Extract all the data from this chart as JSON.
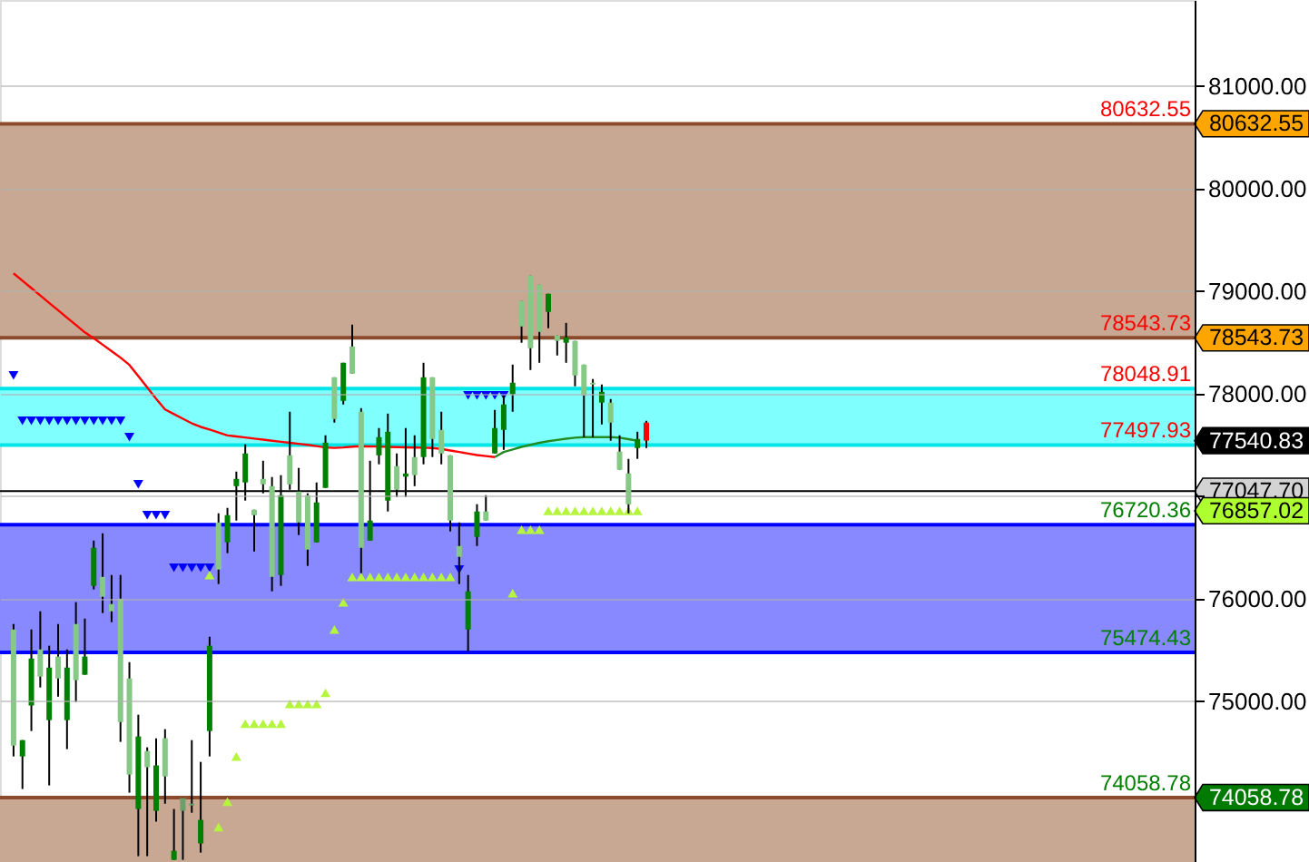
{
  "chart_data": {
    "type": "candlestick",
    "categories": [
      null,
      null,
      null,
      null,
      null,
      null,
      null,
      null,
      null,
      null,
      null,
      null,
      null,
      null,
      null,
      null,
      null,
      null,
      null,
      null,
      null,
      null,
      null,
      null,
      null,
      null,
      null,
      null,
      null,
      null,
      null,
      null,
      null,
      null,
      null,
      null,
      null,
      null,
      null,
      null,
      null,
      null,
      null,
      null,
      null,
      null,
      null,
      null,
      null,
      null,
      null,
      null,
      null,
      null,
      null,
      null,
      null,
      null,
      null,
      null,
      null,
      null,
      null,
      null,
      null,
      null,
      null,
      null,
      null,
      null,
      null,
      null,
      null,
      null,
      null,
      null,
      null,
      null,
      null,
      null,
      null,
      null,
      null,
      null,
      null,
      null,
      null,
      null,
      null,
      null,
      null,
      null,
      null,
      null,
      null,
      null,
      null,
      null,
      null,
      null,
      null,
      null,
      null,
      null,
      null,
      null,
      null,
      null,
      null,
      null,
      null,
      null,
      null,
      null,
      null,
      null,
      null,
      null,
      null,
      null,
      null,
      null,
      null,
      null,
      null,
      null,
      null,
      null,
      null,
      null,
      null,
      null
    ],
    "ohlc": [
      [
        75699,
        75752,
        74460,
        74566
      ],
      [
        74460,
        74619,
        74142,
        74619
      ],
      [
        74956,
        75699,
        74708,
        75416
      ],
      [
        75504,
        75876,
        75133,
        75239
      ],
      [
        74814,
        75540,
        74177,
        75327
      ],
      [
        75434,
        75752,
        75044,
        75221
      ],
      [
        74814,
        75504,
        74531,
        75327
      ],
      [
        75752,
        75965,
        74991,
        75204
      ],
      [
        75257,
        75805,
        75257,
        75434
      ],
      [
        76124,
        76566,
        76089,
        76496
      ],
      [
        76212,
        76637,
        75859,
        76018
      ],
      [
        75947,
        76230,
        75770,
        75876
      ],
      [
        76000,
        76230,
        74602,
        74796
      ],
      [
        75221,
        75380,
        74106,
        74283
      ],
      [
        73947,
        74867,
        73487,
        74655
      ],
      [
        74513,
        74549,
        73487,
        74354
      ],
      [
        73929,
        74637,
        73823,
        74372
      ],
      [
        74637,
        74726,
        73999,
        74265
      ],
      [
        73451,
        73947,
        73451,
        73540
      ],
      [
        74053,
        74053,
        73451,
        73929
      ],
      [
        73999,
        74619,
        73911,
        73982
      ],
      [
        73611,
        74407,
        73522,
        73841
      ],
      [
        74708,
        75628,
        74460,
        75540
      ],
      [
        76743,
        76832,
        76142,
        76283
      ],
      [
        76549,
        76885,
        76443,
        76814
      ],
      [
        77097,
        77239,
        76761,
        77168
      ],
      [
        77133,
        77505,
        76956,
        77416
      ],
      [
        76867,
        76867,
        76460,
        76814
      ],
      [
        77168,
        77345,
        77027,
        77115
      ],
      [
        77097,
        77186,
        76071,
        76212
      ],
      [
        76230,
        77204,
        76124,
        77009
      ],
      [
        77398,
        77823,
        77062,
        77115
      ],
      [
        77044,
        77275,
        76620,
        76743
      ],
      [
        77009,
        77027,
        76319,
        76478
      ],
      [
        76549,
        77133,
        76549,
        76938
      ],
      [
        77080,
        77593,
        77080,
        77522
      ],
      [
        78159,
        78159,
        77717,
        77752
      ],
      [
        77929,
        78301,
        77894,
        78301
      ],
      [
        78460,
        78673,
        78195,
        78195
      ],
      [
        77823,
        77858,
        76248,
        76496
      ],
      [
        76566,
        77345,
        76566,
        76761
      ],
      [
        77398,
        77664,
        77310,
        77575
      ],
      [
        76956,
        77805,
        76850,
        77628
      ],
      [
        77292,
        77416,
        76991,
        77062
      ],
      [
        77220,
        77664,
        76991,
        77190
      ],
      [
        77381,
        77593,
        77097,
        77204
      ],
      [
        77381,
        78301,
        77310,
        78159
      ],
      [
        78159,
        78159,
        77381,
        77557
      ],
      [
        77646,
        77823,
        77310,
        77416
      ],
      [
        77398,
        77398,
        76655,
        76761
      ],
      [
        76513,
        76743,
        76142,
        76407
      ],
      [
        75699,
        76230,
        75487,
        76071
      ],
      [
        76602,
        76921,
        76513,
        76850
      ],
      [
        76850,
        77009,
        76761,
        76761
      ],
      [
        77416,
        77841,
        77416,
        77664
      ],
      [
        77646,
        77982,
        77451,
        77894
      ],
      [
        77994,
        78283,
        77823,
        78106
      ],
      [
        78903,
        78903,
        78496,
        78655
      ],
      [
        79151,
        79151,
        78230,
        78443
      ],
      [
        79062,
        79062,
        78301,
        78602
      ],
      [
        78797,
        78974,
        78637,
        78974
      ],
      [
        78567,
        78567,
        78372,
        78514
      ],
      [
        78496,
        78690,
        78301,
        78549
      ],
      [
        78514,
        78514,
        78071,
        78177
      ],
      [
        78283,
        78283,
        77575,
        77982
      ],
      [
        78106,
        78142,
        77575,
        78089
      ],
      [
        77912,
        78089,
        77699,
        78018
      ],
      [
        77912,
        77947,
        77540,
        77717
      ],
      [
        77434,
        77593,
        77257,
        77257
      ],
      [
        77221,
        77363,
        76832,
        76920
      ],
      [
        77469,
        77628,
        77363,
        77557
      ],
      [
        77717,
        77735,
        77469,
        77540.83
      ],
      null,
      null,
      null,
      null,
      null,
      null,
      null,
      null,
      null,
      null,
      null,
      null,
      null,
      null,
      null,
      null,
      null,
      null,
      null,
      null,
      null,
      null,
      null,
      null,
      null,
      null,
      null,
      null,
      null,
      null,
      null,
      null,
      null,
      null,
      null,
      null,
      null,
      null,
      null,
      null,
      null,
      null,
      null,
      null,
      null,
      null,
      null,
      null,
      null,
      null,
      null,
      null,
      null,
      null,
      null,
      null,
      null,
      null,
      null,
      null
    ],
    "colors": [
      "#86c986",
      "#008000",
      "#008000",
      "#86c986",
      "#008000",
      "#86c986",
      "#008000",
      "#86c986",
      "#008000",
      "#008000",
      "#86c986",
      "#86c986",
      "#86c986",
      "#86c986",
      "#008000",
      "#86c986",
      "#008000",
      "#86c986",
      "#008000",
      "#6b9f6b",
      "#6b9f6b",
      "#008000",
      "#008000",
      "#86c986",
      "#008000",
      "#008000",
      "#008000",
      "#86c986",
      "#86c986",
      "#86c986",
      "#008000",
      "#86c986",
      "#86c986",
      "#86c986",
      "#008000",
      "#008000",
      "#86c986",
      "#008000",
      "#86c986",
      "#86c986",
      "#008000",
      "#008000",
      "#008000",
      "#86c986",
      "#008000",
      "#86c986",
      "#008000",
      "#86c986",
      "#86c986",
      "#86c986",
      "#86c986",
      "#008000",
      "#008000",
      "#86c986",
      "#008000",
      "#008000",
      "#008000",
      "#86c986",
      "#86c986",
      "#86c986",
      "#008000",
      "#86c986",
      "#008000",
      "#86c986",
      "#86c986",
      "#86c986",
      "#008000",
      "#86c986",
      "#86c986",
      "#86c986",
      "#008000",
      "#ff0000",
      null,
      null,
      null,
      null,
      null,
      null,
      null,
      null,
      null,
      null,
      null,
      null,
      null,
      null,
      null,
      null,
      null,
      null,
      null,
      null,
      null,
      null,
      null,
      null,
      null,
      null,
      null,
      null,
      null,
      null,
      null,
      null,
      null,
      null,
      null,
      null,
      null,
      null,
      null,
      null,
      null,
      null,
      null,
      null,
      null,
      null,
      null,
      null,
      null,
      null,
      null,
      null,
      null,
      null,
      null,
      null,
      null,
      null,
      null,
      null
    ],
    "series": [
      {
        "type": "line",
        "color": "#ff0000",
        "values": [
          79173,
          79101,
          79029,
          78957,
          78885,
          78813,
          78741,
          78669,
          78597,
          78540,
          78477,
          78414,
          78351,
          78280,
          78170,
          78060,
          77950,
          77845,
          77800,
          77755,
          77710,
          77675,
          77650,
          77620,
          77592,
          77582,
          77572,
          77561,
          77551,
          77540,
          77530,
          77520,
          77510,
          77500,
          77488,
          77475,
          77470,
          77475,
          77482,
          77487,
          77485,
          77483,
          77480,
          77478,
          77476,
          77474,
          77472,
          77469,
          77460,
          77445,
          77430,
          77415,
          77400,
          77390,
          77381,
          null,
          null,
          null,
          null,
          null,
          null,
          null,
          null,
          null,
          null,
          null,
          null,
          null,
          null,
          null,
          null,
          null,
          null,
          null,
          null,
          null,
          null,
          null,
          null,
          null,
          null,
          null,
          null,
          null,
          null,
          null,
          null,
          null,
          null,
          null,
          null,
          null,
          null,
          null,
          null,
          null,
          null,
          null,
          null,
          null,
          null,
          null,
          null,
          null,
          null,
          null,
          null,
          null,
          null,
          null,
          null,
          null,
          null,
          null,
          null,
          null,
          null,
          null,
          null,
          null,
          null,
          null,
          null,
          null,
          null,
          null,
          null,
          null,
          null,
          null,
          null,
          null
        ]
      },
      {
        "type": "line",
        "color": "#228b22",
        "values": [
          null,
          null,
          null,
          null,
          null,
          null,
          null,
          null,
          null,
          null,
          null,
          null,
          null,
          null,
          null,
          null,
          null,
          null,
          null,
          null,
          null,
          null,
          null,
          null,
          null,
          null,
          null,
          null,
          null,
          null,
          null,
          null,
          null,
          null,
          null,
          null,
          null,
          null,
          null,
          null,
          null,
          null,
          null,
          null,
          null,
          null,
          null,
          null,
          null,
          null,
          null,
          null,
          null,
          null,
          77381,
          77430,
          77455,
          77480,
          77500,
          77520,
          77535,
          77548,
          77560,
          77570,
          77575,
          77575,
          77575,
          77575,
          77570,
          77555,
          77540,
          null,
          null,
          null,
          null,
          null,
          null,
          null,
          null,
          null,
          null,
          null,
          null,
          null,
          null,
          null,
          null,
          null,
          null,
          null,
          null,
          null,
          null,
          null,
          null,
          null,
          null,
          null,
          null,
          null,
          null,
          null,
          null,
          null,
          null,
          null,
          null,
          null,
          null,
          null,
          null,
          null,
          null,
          null,
          null,
          null,
          null,
          null,
          null,
          null,
          null,
          null,
          null,
          null,
          null,
          null,
          null,
          null,
          null,
          null,
          null,
          null
        ]
      },
      {
        "type": "scatter",
        "marker": "triangle",
        "color": "#0000ff",
        "values": [
          78177,
          77735,
          77735,
          77735,
          77735,
          77735,
          77735,
          77735,
          77735,
          77735,
          77735,
          77735,
          77735,
          77575,
          77115,
          76814,
          76814,
          76814,
          76301,
          76301,
          76301,
          76301,
          76301,
          null,
          null,
          null,
          null,
          null,
          null,
          null,
          null,
          null,
          null,
          null,
          null,
          null,
          null,
          null,
          null,
          null,
          null,
          null,
          null,
          null,
          null,
          null,
          null,
          null,
          null,
          null,
          76283,
          77982,
          77982,
          77982,
          77982,
          77982,
          null,
          null,
          null,
          null,
          null,
          null,
          null,
          null,
          null,
          null,
          null,
          null,
          null,
          null,
          null,
          null,
          null,
          null,
          null,
          null,
          null,
          null,
          null,
          null,
          null,
          null,
          null,
          null,
          null,
          null,
          null,
          null,
          null,
          null,
          null,
          null,
          null,
          null,
          null,
          null,
          null,
          null,
          null,
          null,
          null,
          null,
          null,
          null,
          null,
          null,
          null,
          null,
          null,
          null,
          null,
          null,
          null,
          null,
          null,
          null,
          null,
          null,
          null,
          null,
          null,
          null,
          null,
          null,
          null,
          null,
          null,
          null,
          null,
          null,
          null,
          null
        ]
      },
      {
        "type": "scatter",
        "marker": "triangle",
        "color": "#b5f53d",
        "values": [
          null,
          null,
          null,
          null,
          null,
          null,
          null,
          null,
          null,
          null,
          null,
          null,
          null,
          null,
          null,
          null,
          null,
          null,
          null,
          null,
          null,
          null,
          76230,
          73770,
          74018,
          74460,
          74779,
          74779,
          74779,
          74779,
          74779,
          74973,
          74973,
          74973,
          74973,
          75080,
          75699,
          75965,
          76212,
          76212,
          76212,
          76212,
          76212,
          76212,
          76212,
          76212,
          76212,
          76212,
          76212,
          76212,
          null,
          null,
          null,
          null,
          null,
          null,
          76053,
          76673,
          76673,
          76673,
          76857.02,
          76857.02,
          76857.02,
          76857.02,
          76857.02,
          76857.02,
          76857.02,
          76857.02,
          76857.02,
          76857.02,
          76857.02,
          null,
          null,
          null,
          null,
          null,
          null,
          null,
          null,
          null,
          null,
          null,
          null,
          null,
          null,
          null,
          null,
          null,
          null,
          null,
          null,
          null,
          null,
          null,
          null,
          null,
          null,
          null,
          null,
          null,
          null,
          null,
          null,
          null,
          null,
          null,
          null,
          null,
          null,
          null,
          null,
          null,
          null,
          null,
          null,
          null,
          null,
          null,
          null,
          null,
          null,
          null,
          null,
          null,
          null,
          null,
          null,
          null,
          null,
          null,
          null,
          null
        ]
      }
    ],
    "ylim": [
      73430,
      81840
    ],
    "yticks": [
      {
        "value": 75000,
        "label": "75000.00"
      },
      {
        "value": 76000,
        "label": "76000.00"
      },
      {
        "value": 77000,
        "label": null
      },
      {
        "value": 78000,
        "label": "78000.00"
      },
      {
        "value": 79000,
        "label": "79000.00"
      },
      {
        "value": 80000,
        "label": "80000.00"
      },
      {
        "value": 81000,
        "label": "81000.00"
      }
    ],
    "tick_labels": "y",
    "grid": "y",
    "bands": [
      {
        "axis": "y",
        "from": 78543.73,
        "to": 80632.55,
        "color": "#c8a892"
      },
      {
        "axis": "y",
        "from": 73430,
        "to": 74058.78,
        "color": "#c8a892"
      },
      {
        "axis": "y",
        "from": 77497.93,
        "to": 78048.91,
        "color": "#80ffff"
      },
      {
        "axis": "y",
        "from": 75474.43,
        "to": 76720.36,
        "color": "#8888ff"
      }
    ],
    "ref_lines": [
      {
        "axis": "y",
        "value": 80632.55,
        "label": "80632.55",
        "color": "#8b4a2b"
      },
      {
        "axis": "y",
        "value": 78543.73,
        "label": "78543.73",
        "color": "#8b4a2b"
      },
      {
        "axis": "y",
        "value": 78048.91,
        "label": "78048.91",
        "color": "#00e5e5"
      },
      {
        "axis": "y",
        "value": 77497.93,
        "label": "77497.93",
        "color": "#00e5e5"
      },
      {
        "axis": "y",
        "value": 77047.7,
        "label": null,
        "color": "#000000"
      },
      {
        "axis": "y",
        "value": 76720.36,
        "label": "76720.36",
        "color": "#0000ff"
      },
      {
        "axis": "y",
        "value": 75474.43,
        "label": "75474.43",
        "color": "#0000ff"
      },
      {
        "axis": "y",
        "value": 74058.78,
        "label": "74058.78",
        "color": "#8b4a2b"
      }
    ],
    "annotations": [
      "80632.55",
      "78543.73",
      "77540.83",
      "77047.70",
      "76857.02",
      "74058.78"
    ]
  }
}
